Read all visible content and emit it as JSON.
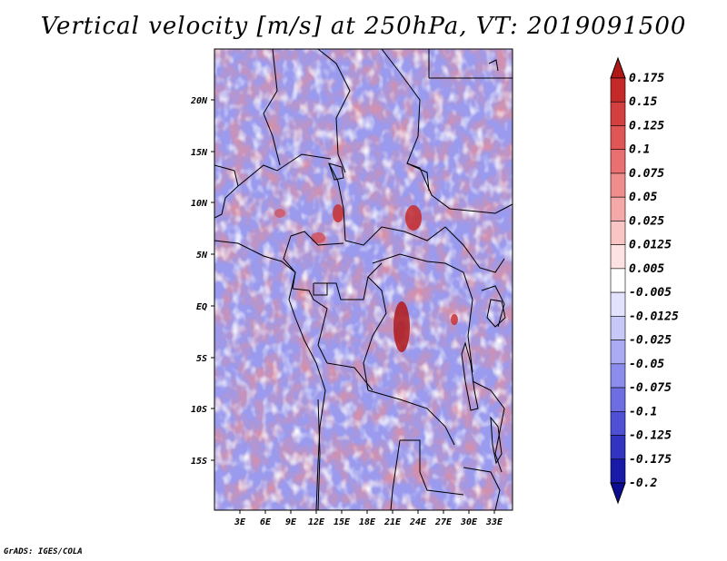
{
  "title": "Vertical velocity [m/s] at 250hPa, VT: 2019091500",
  "credit": "GrADS: IGES/COLA",
  "map": {
    "lat_labels": [
      "20N",
      "15N",
      "10N",
      "5N",
      "EQ",
      "5S",
      "10S",
      "15S"
    ],
    "lon_labels": [
      "3E",
      "6E",
      "9E",
      "12E",
      "15E",
      "18E",
      "21E",
      "24E",
      "27E",
      "30E",
      "33E"
    ]
  },
  "colorbar": {
    "labels": [
      "0.175",
      "0.15",
      "0.125",
      "0.1",
      "0.075",
      "0.05",
      "0.025",
      "0.0125",
      "0.005",
      "-0.005",
      "-0.0125",
      "-0.025",
      "-0.05",
      "-0.075",
      "-0.1",
      "-0.125",
      "-0.175",
      "-0.2"
    ],
    "colors": [
      "#b01818",
      "#c42a2a",
      "#d44040",
      "#e05656",
      "#e87070",
      "#ef8c8c",
      "#f4a8a8",
      "#f8c4c4",
      "#fce2e2",
      "#ffffff",
      "#e2e2fc",
      "#c8c8f8",
      "#aaaaf2",
      "#8c8cec",
      "#6e6ee2",
      "#5050d4",
      "#3434c2",
      "#1a1aa8",
      "#0c0c90"
    ]
  }
}
